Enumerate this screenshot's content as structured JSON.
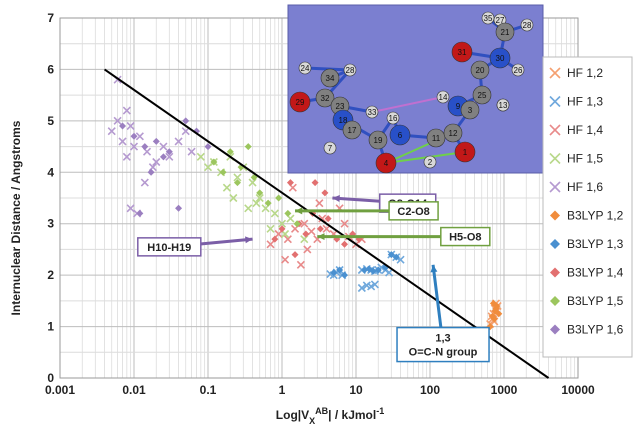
{
  "chart_data": {
    "type": "scatter",
    "title": "",
    "xlabel": "Log|V",
    "xlabel_sub": "X",
    "xlabel_sup": "AB",
    "xlabel_tail": "| / kJmol",
    "xlabel_unit_sup": "-1",
    "ylabel": "Internuclear Distance / Angstroms",
    "xscale": "log",
    "xlim": [
      0.001,
      10000
    ],
    "ylim": [
      0,
      7
    ],
    "x_tick_labels": [
      "0.001",
      "0.01",
      "0.1",
      "1",
      "10",
      "100",
      "1000",
      "10000"
    ],
    "y_tick_labels": [
      "0",
      "1",
      "2",
      "3",
      "4",
      "5",
      "6",
      "7"
    ],
    "grid": true,
    "legend_position": "right",
    "series": [
      {
        "name": "HF 1,2",
        "marker": "x",
        "color": "#f4a070",
        "x": [
          650,
          700,
          720,
          750,
          780,
          800,
          820,
          680,
          740
        ],
        "y": [
          1.05,
          1.15,
          1.25,
          1.35,
          1.45,
          1.3,
          1.4,
          1.2,
          1.1
        ]
      },
      {
        "name": "HF 1,3",
        "marker": "x",
        "color": "#6fa8dc",
        "x": [
          5,
          5.5,
          6,
          12,
          14,
          16,
          18,
          20,
          22,
          25,
          28,
          30,
          35,
          40,
          12,
          14,
          16,
          18,
          6.5,
          4.5
        ],
        "y": [
          2.0,
          2.05,
          2.1,
          2.1,
          2.12,
          2.1,
          2.08,
          2.1,
          2.15,
          2.1,
          2.05,
          2.4,
          2.35,
          2.3,
          1.75,
          1.8,
          1.78,
          1.82,
          2.0,
          2.02
        ]
      },
      {
        "name": "HF 1,4",
        "marker": "x",
        "color": "#e88a8a",
        "x": [
          0.7,
          0.9,
          1.2,
          1.5,
          2.0,
          2.5,
          3.0,
          3.5,
          4.0,
          5.0,
          6.0,
          7.0,
          8.0,
          10,
          12,
          1.1,
          1.8,
          2.2,
          3.2,
          1.4
        ],
        "y": [
          2.6,
          2.8,
          2.7,
          2.9,
          3.0,
          2.85,
          2.7,
          3.1,
          2.9,
          2.8,
          3.3,
          3.0,
          2.75,
          2.6,
          2.7,
          2.3,
          2.2,
          2.5,
          3.4,
          3.7
        ]
      },
      {
        "name": "HF 1,5",
        "marker": "x",
        "color": "#b8d88a",
        "x": [
          0.08,
          0.1,
          0.12,
          0.15,
          0.2,
          0.25,
          0.3,
          0.4,
          0.5,
          0.6,
          0.8,
          1.0,
          1.3,
          0.18,
          0.22,
          0.35,
          0.45,
          0.7,
          1.1,
          2.0
        ],
        "y": [
          4.3,
          4.1,
          4.2,
          4.0,
          4.3,
          3.9,
          4.1,
          3.8,
          3.5,
          3.3,
          3.2,
          3.0,
          3.1,
          3.7,
          3.5,
          3.3,
          3.4,
          2.9,
          2.8,
          2.7
        ]
      },
      {
        "name": "HF 1,6",
        "marker": "x",
        "color": "#b59ad0",
        "x": [
          0.005,
          0.006,
          0.007,
          0.008,
          0.009,
          0.01,
          0.012,
          0.015,
          0.02,
          0.025,
          0.03,
          0.04,
          0.05,
          0.06,
          0.006,
          0.009,
          0.014,
          0.018,
          0.011,
          0.008
        ],
        "y": [
          4.8,
          5.0,
          4.6,
          5.2,
          4.9,
          4.5,
          4.7,
          4.4,
          4.2,
          4.5,
          4.3,
          4.6,
          4.8,
          4.4,
          5.8,
          3.3,
          3.8,
          4.1,
          3.2,
          4.3
        ]
      },
      {
        "name": "B3LYP 1,2",
        "marker": "diamond",
        "color": "#f08c3c",
        "x": [
          700,
          760,
          800,
          720,
          780,
          850,
          650,
          740
        ],
        "y": [
          1.2,
          1.3,
          1.4,
          1.45,
          1.35,
          1.25,
          1.0,
          1.15
        ]
      },
      {
        "name": "B3LYP 1,3",
        "marker": "diamond",
        "color": "#4a90d0",
        "x": [
          5,
          6,
          7,
          13,
          15,
          17,
          20,
          25,
          30,
          35
        ],
        "y": [
          2.05,
          2.1,
          2.0,
          2.1,
          2.12,
          2.08,
          2.1,
          2.15,
          2.4,
          2.35
        ]
      },
      {
        "name": "B3LYP 1,4",
        "marker": "diamond",
        "color": "#e27070",
        "x": [
          0.8,
          1.0,
          1.3,
          1.7,
          2.1,
          2.6,
          3.3,
          4.2,
          5.5,
          7.0,
          9.0,
          11,
          2.8,
          1.5,
          3.8
        ],
        "y": [
          2.7,
          2.9,
          3.8,
          3.0,
          2.8,
          3.2,
          2.9,
          3.1,
          2.7,
          2.6,
          2.8,
          2.7,
          3.8,
          2.4,
          3.6
        ]
      },
      {
        "name": "B3LYP 1,5",
        "marker": "diamond",
        "color": "#9cc65e",
        "x": [
          0.12,
          0.16,
          0.2,
          0.28,
          0.35,
          0.5,
          0.65,
          0.9,
          1.2,
          1.6,
          0.25,
          0.42
        ],
        "y": [
          4.2,
          4.0,
          4.4,
          4.1,
          4.5,
          3.6,
          3.4,
          3.5,
          3.2,
          3.0,
          3.8,
          3.9
        ]
      },
      {
        "name": "B3LYP 1,6",
        "marker": "diamond",
        "color": "#9b7fc0",
        "x": [
          0.007,
          0.01,
          0.014,
          0.02,
          0.03,
          0.05,
          0.07,
          0.1,
          0.012,
          0.017,
          0.025,
          0.04
        ],
        "y": [
          4.9,
          4.7,
          4.5,
          4.6,
          4.4,
          5.0,
          4.8,
          4.5,
          3.2,
          4.0,
          4.3,
          3.3
        ]
      }
    ],
    "trendline": {
      "x": [
        0.004,
        4000
      ],
      "y": [
        6.0,
        0.0
      ],
      "color": "#000000"
    },
    "annotations": [
      {
        "text": "O8-O14",
        "color": "#7b5ea7",
        "x": 50,
        "y": 3.4,
        "arrow_to": [
          4.8,
          3.5
        ]
      },
      {
        "text": "C2-O8",
        "color": "#70a040",
        "x": 60,
        "y": 3.25,
        "arrow_to": [
          1.5,
          3.25
        ]
      },
      {
        "text": "H5-O8",
        "color": "#70a040",
        "x": 300,
        "y": 2.75,
        "arrow_to": [
          3.0,
          2.75
        ]
      },
      {
        "text": "H10-H19",
        "color": "#7b5ea7",
        "x": 0.03,
        "y": 2.55,
        "arrow_to": [
          0.4,
          2.7
        ]
      },
      {
        "text": "1,3",
        "text2": "O=C-N group",
        "color": "#2f7fbf",
        "x": 150,
        "y": 0.65,
        "arrow_to": [
          110,
          2.2
        ]
      }
    ]
  },
  "inset": {
    "description": "molecular structure rendering",
    "bg_color": "#7b7fd0",
    "atom_labels": [
      "35",
      "27",
      "21",
      "28",
      "31",
      "30",
      "20",
      "26",
      "25",
      "22",
      "24",
      "34",
      "28",
      "29",
      "32",
      "23",
      "33",
      "18",
      "17",
      "7",
      "16",
      "19",
      "6",
      "9",
      "3",
      "13",
      "11",
      "12",
      "1",
      "4",
      "2",
      "14",
      "8",
      "5"
    ]
  }
}
